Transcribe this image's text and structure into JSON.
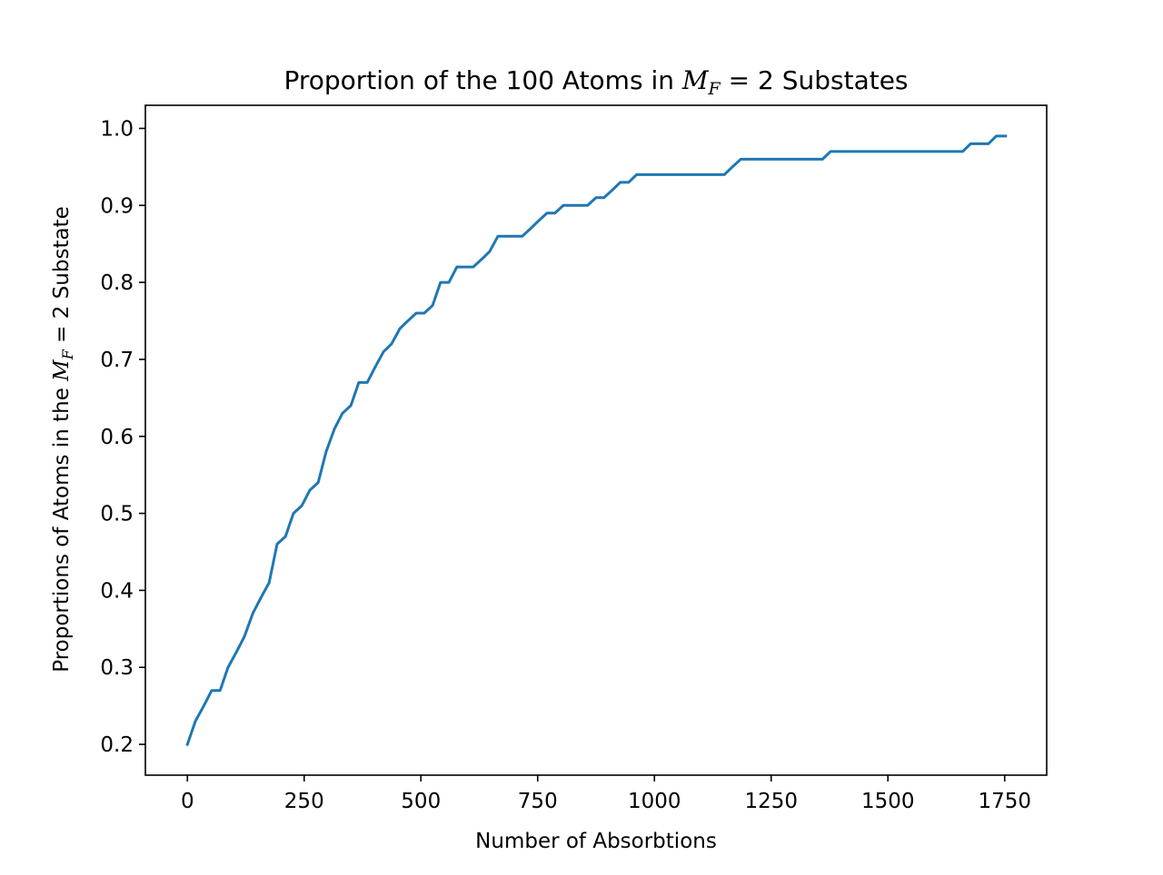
{
  "chart_data": {
    "type": "line",
    "title": {
      "prefix": "Proportion of the 100 Atoms in ",
      "math_var": "M",
      "math_sub": "F",
      "math_rest": " = 2",
      "suffix": " Substates"
    },
    "xlabel": "Number of Absorbtions",
    "ylabel": {
      "prefix": "Proportions of Atoms in the ",
      "math_var": "M",
      "math_sub": "F",
      "math_rest": " = 2",
      "suffix": " Substate"
    },
    "xlim": [
      -90,
      1840
    ],
    "ylim": [
      0.16,
      1.03
    ],
    "x_ticks": [
      0,
      250,
      500,
      750,
      1000,
      1250,
      1500,
      1750
    ],
    "x_tick_labels": [
      "0",
      "250",
      "500",
      "750",
      "1000",
      "1250",
      "1500",
      "1750"
    ],
    "y_ticks": [
      0.2,
      0.3,
      0.4,
      0.5,
      0.6,
      0.7,
      0.8,
      0.9,
      1.0
    ],
    "y_tick_labels": [
      "0.2",
      "0.3",
      "0.4",
      "0.5",
      "0.6",
      "0.7",
      "0.8",
      "0.9",
      "1.0"
    ],
    "grid": false,
    "series": [
      {
        "color": "#1f77b4",
        "points": [
          [
            0,
            0.2
          ],
          [
            17,
            0.23
          ],
          [
            35,
            0.25
          ],
          [
            52,
            0.27
          ],
          [
            70,
            0.27
          ],
          [
            87,
            0.3
          ],
          [
            105,
            0.32
          ],
          [
            122,
            0.34
          ],
          [
            140,
            0.37
          ],
          [
            157,
            0.39
          ],
          [
            175,
            0.41
          ],
          [
            192,
            0.46
          ],
          [
            210,
            0.47
          ],
          [
            227,
            0.5
          ],
          [
            245,
            0.51
          ],
          [
            262,
            0.53
          ],
          [
            280,
            0.54
          ],
          [
            297,
            0.58
          ],
          [
            315,
            0.61
          ],
          [
            332,
            0.63
          ],
          [
            350,
            0.64
          ],
          [
            367,
            0.67
          ],
          [
            385,
            0.67
          ],
          [
            402,
            0.69
          ],
          [
            420,
            0.71
          ],
          [
            437,
            0.72
          ],
          [
            455,
            0.74
          ],
          [
            472,
            0.75
          ],
          [
            490,
            0.76
          ],
          [
            507,
            0.76
          ],
          [
            525,
            0.77
          ],
          [
            542,
            0.8
          ],
          [
            560,
            0.8
          ],
          [
            577,
            0.82
          ],
          [
            595,
            0.82
          ],
          [
            612,
            0.82
          ],
          [
            630,
            0.83
          ],
          [
            647,
            0.84
          ],
          [
            665,
            0.86
          ],
          [
            682,
            0.86
          ],
          [
            700,
            0.86
          ],
          [
            717,
            0.86
          ],
          [
            735,
            0.87
          ],
          [
            752,
            0.88
          ],
          [
            770,
            0.89
          ],
          [
            787,
            0.89
          ],
          [
            805,
            0.9
          ],
          [
            822,
            0.9
          ],
          [
            840,
            0.9
          ],
          [
            857,
            0.9
          ],
          [
            875,
            0.91
          ],
          [
            892,
            0.91
          ],
          [
            910,
            0.92
          ],
          [
            927,
            0.93
          ],
          [
            945,
            0.93
          ],
          [
            962,
            0.94
          ],
          [
            980,
            0.94
          ],
          [
            1150,
            0.94
          ],
          [
            1167,
            0.95
          ],
          [
            1185,
            0.96
          ],
          [
            1360,
            0.96
          ],
          [
            1377,
            0.97
          ],
          [
            1660,
            0.97
          ],
          [
            1677,
            0.98
          ],
          [
            1715,
            0.98
          ],
          [
            1732,
            0.99
          ],
          [
            1752,
            0.99
          ]
        ]
      }
    ]
  }
}
